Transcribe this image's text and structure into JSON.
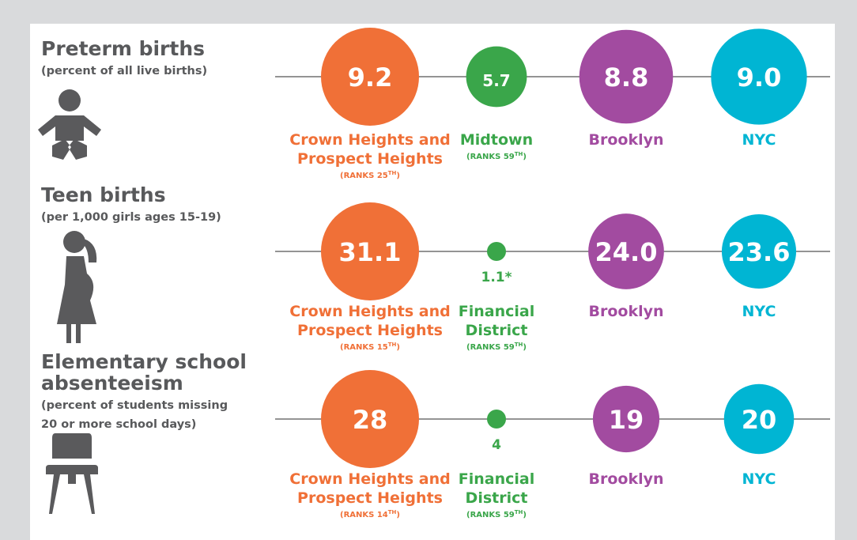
{
  "rows": [
    {
      "title": [
        "Preterm births"
      ],
      "subtitle": [
        "(percent of all live births)"
      ],
      "items": [
        {
          "value": "9.2",
          "name": [
            "Crown Heights and",
            "Prospect Heights"
          ],
          "rank": {
            "text": "(RANKS 25",
            "sup": "TH",
            "end": ")"
          }
        },
        {
          "value": "5.7",
          "name": [
            "Midtown"
          ],
          "rank": {
            "text": "(RANKS 59",
            "sup": "TH",
            "end": ")"
          }
        },
        {
          "value": "8.8",
          "name": [
            "Brooklyn"
          ]
        },
        {
          "value": "9.0",
          "name": [
            "NYC"
          ]
        }
      ]
    },
    {
      "title": [
        "Teen births"
      ],
      "subtitle": [
        "(per 1,000 girls ages 15-19)"
      ],
      "items": [
        {
          "value": "31.1",
          "name": [
            "Crown Heights and",
            "Prospect Heights"
          ],
          "rank": {
            "text": "(RANKS 15",
            "sup": "TH",
            "end": ")"
          }
        },
        {
          "value": "1.1*",
          "name": [
            "Financial",
            "District"
          ],
          "rank": {
            "text": "(RANKS 59",
            "sup": "TH",
            "end": ")"
          }
        },
        {
          "value": "24.0",
          "name": [
            "Brooklyn"
          ]
        },
        {
          "value": "23.6",
          "name": [
            "NYC"
          ]
        }
      ]
    },
    {
      "title": [
        "Elementary school",
        "absenteeism"
      ],
      "subtitle": [
        "(percent of students missing",
        "20 or more school days)"
      ],
      "items": [
        {
          "value": "28",
          "name": [
            "Crown Heights and",
            "Prospect Heights"
          ],
          "rank": {
            "text": "(RANKS 14",
            "sup": "TH",
            "end": ")"
          }
        },
        {
          "value": "4",
          "name": [
            "Financial",
            "District"
          ],
          "rank": {
            "text": "(RANKS 59",
            "sup": "TH",
            "end": ")"
          }
        },
        {
          "value": "19",
          "name": [
            "Brooklyn"
          ]
        },
        {
          "value": "20",
          "name": [
            "NYC"
          ]
        }
      ]
    }
  ]
}
